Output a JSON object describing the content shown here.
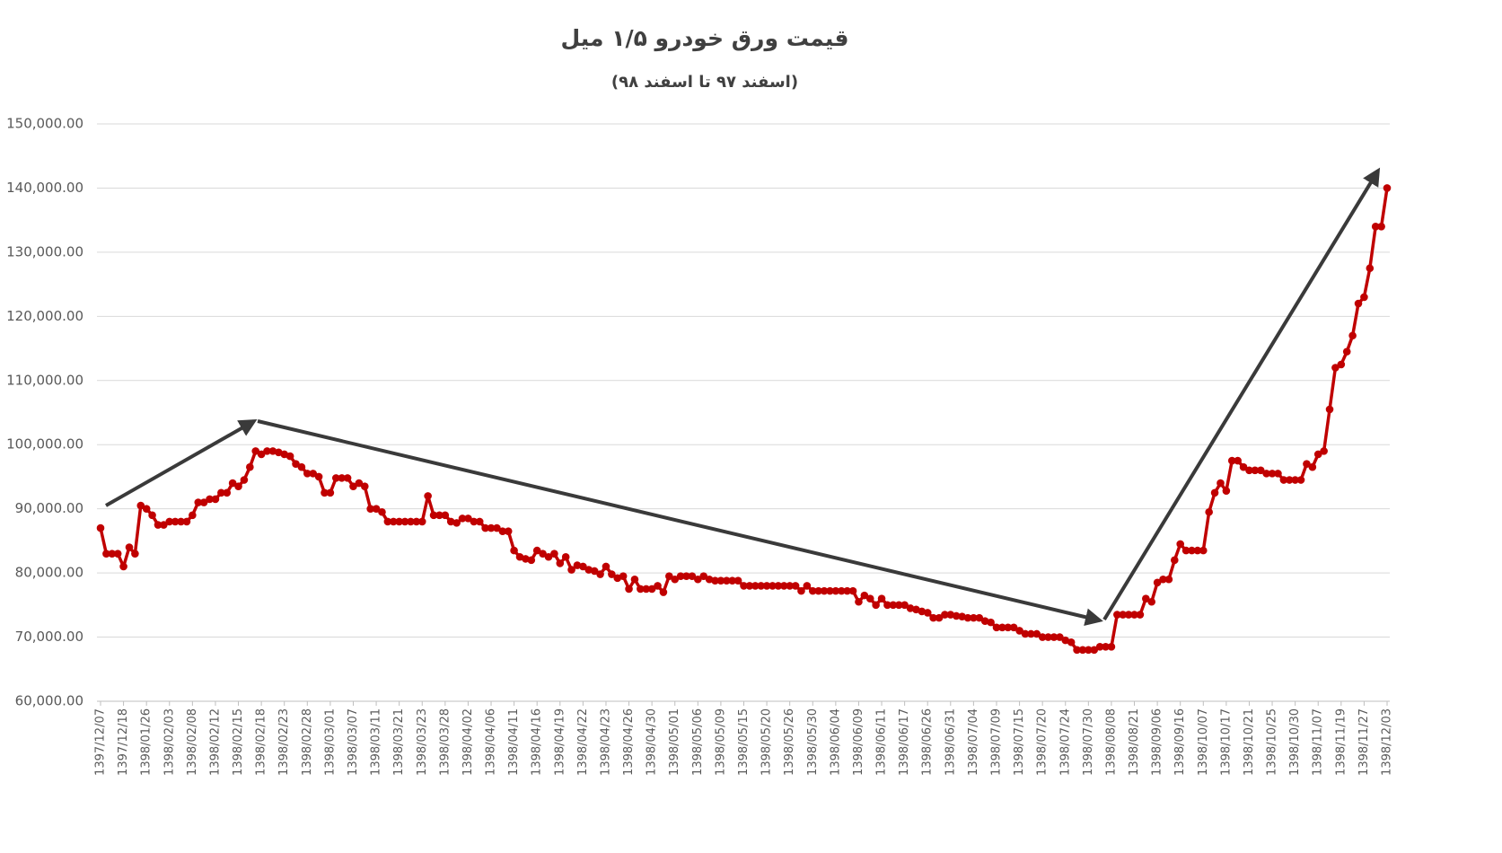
{
  "chart_data": {
    "type": "line",
    "title": "قیمت ورق خودرو ۱/۵ میل",
    "subtitle": "(اسفند ۹۷ تا اسفند ۹۸)",
    "categories": [
      "1397/12/07",
      null,
      null,
      null,
      "1397/12/18",
      null,
      null,
      null,
      "1398/01/26",
      null,
      null,
      null,
      "1398/02/03",
      null,
      null,
      null,
      "1398/02/08",
      null,
      null,
      null,
      "1398/02/12",
      null,
      null,
      null,
      "1398/02/15",
      null,
      null,
      null,
      "1398/02/18",
      null,
      null,
      null,
      "1398/02/23",
      null,
      null,
      null,
      "1398/02/28",
      null,
      null,
      null,
      "1398/03/01",
      null,
      null,
      null,
      "1398/03/07",
      null,
      null,
      null,
      "1398/03/11",
      null,
      null,
      null,
      "1398/03/21",
      null,
      null,
      null,
      "1398/03/23",
      null,
      null,
      null,
      "1398/03/28",
      null,
      null,
      null,
      "1398/04/02",
      null,
      null,
      null,
      "1398/04/06",
      null,
      null,
      null,
      "1398/04/11",
      null,
      null,
      null,
      "1398/04/16",
      null,
      null,
      null,
      "1398/04/19",
      null,
      null,
      null,
      "1398/04/22",
      null,
      null,
      null,
      "1398/04/23",
      null,
      null,
      null,
      "1398/04/26",
      null,
      null,
      null,
      "1398/04/30",
      null,
      null,
      null,
      "1398/05/01",
      null,
      null,
      null,
      "1398/05/06",
      null,
      null,
      null,
      "1398/05/09",
      null,
      null,
      null,
      "1398/05/15",
      null,
      null,
      null,
      "1398/05/20",
      null,
      null,
      null,
      "1398/05/26",
      null,
      null,
      null,
      "1398/05/30",
      null,
      null,
      null,
      "1398/06/04",
      null,
      null,
      null,
      "1398/06/09",
      null,
      null,
      null,
      "1398/06/11",
      null,
      null,
      null,
      "1398/06/17",
      null,
      null,
      null,
      "1398/06/26",
      null,
      null,
      null,
      "1398/06/31",
      null,
      null,
      null,
      "1398/07/04",
      null,
      null,
      null,
      "1398/07/09",
      null,
      null,
      null,
      "1398/07/15",
      null,
      null,
      null,
      "1398/07/20",
      null,
      null,
      null,
      "1398/07/24",
      null,
      null,
      null,
      "1398/07/30",
      null,
      null,
      null,
      "1398/08/08",
      null,
      null,
      null,
      "1398/08/21",
      null,
      null,
      null,
      "1398/09/06",
      null,
      null,
      null,
      "1398/09/16",
      null,
      null,
      null,
      "1398/10/07",
      null,
      null,
      null,
      "1398/10/17",
      null,
      null,
      null,
      "1398/10/21",
      null,
      null,
      null,
      "1398/10/25",
      null,
      null,
      null,
      "1398/10/30",
      null,
      null,
      null,
      "1398/11/07",
      null,
      null,
      null,
      "1398/11/19",
      null,
      null,
      null,
      "1398/11/27",
      null,
      null,
      null,
      "1398/12/03"
    ],
    "values": [
      87000,
      83000,
      83000,
      83000,
      81000,
      84000,
      83000,
      90500,
      90000,
      89000,
      87500,
      87500,
      88000,
      88000,
      88000,
      88000,
      89000,
      91000,
      91000,
      91500,
      91500,
      92500,
      92500,
      94000,
      93500,
      94500,
      96500,
      99000,
      98500,
      99000,
      99000,
      98800,
      98500,
      98200,
      97000,
      96500,
      95500,
      95500,
      95000,
      92500,
      92500,
      94800,
      94800,
      94800,
      93500,
      94000,
      93500,
      90000,
      90000,
      89500,
      88000,
      88000,
      88000,
      88000,
      88000,
      88000,
      88000,
      92000,
      89000,
      89000,
      89000,
      88000,
      87800,
      88500,
      88500,
      88000,
      88000,
      87000,
      87000,
      87000,
      86500,
      86500,
      83500,
      82500,
      82200,
      82000,
      83500,
      83000,
      82500,
      83000,
      81500,
      82500,
      80500,
      81200,
      81000,
      80500,
      80300,
      79800,
      81000,
      79800,
      79200,
      79500,
      77500,
      79000,
      77500,
      77500,
      77500,
      78000,
      77000,
      79500,
      79000,
      79500,
      79500,
      79500,
      79000,
      79500,
      79000,
      78800,
      78800,
      78800,
      78800,
      78800,
      78000,
      78000,
      78000,
      78000,
      78000,
      78000,
      78000,
      78000,
      78000,
      78000,
      77200,
      78000,
      77200,
      77200,
      77200,
      77200,
      77200,
      77200,
      77200,
      77200,
      75500,
      76500,
      76000,
      75000,
      76000,
      75000,
      75000,
      75000,
      75000,
      74500,
      74300,
      74000,
      73800,
      73000,
      73000,
      73500,
      73500,
      73300,
      73200,
      73000,
      73000,
      73000,
      72500,
      72300,
      71500,
      71500,
      71500,
      71500,
      71000,
      70500,
      70500,
      70500,
      70000,
      70000,
      70000,
      70000,
      69500,
      69200,
      68000,
      68000,
      68000,
      68000,
      68500,
      68500,
      68500,
      73500,
      73500,
      73500,
      73500,
      73500,
      76000,
      75500,
      78500,
      79000,
      79000,
      82000,
      84500,
      83500,
      83500,
      83500,
      83500,
      89500,
      92500,
      94000,
      92800,
      97500,
      97500,
      96500,
      96000,
      96000,
      96000,
      95500,
      95500,
      95500,
      94500,
      94500,
      94500,
      94500,
      97000,
      96500,
      98500,
      99000,
      105500,
      112000,
      112500,
      114500,
      117000,
      122000,
      123000,
      127500,
      134000,
      134000,
      140000
    ],
    "color": "#c00000",
    "ylim": [
      60000,
      150000
    ],
    "yticks": [
      {
        "value": 60000,
        "label": "60,000.00"
      },
      {
        "value": 70000,
        "label": "70,000.00"
      },
      {
        "value": 80000,
        "label": "80,000.00"
      },
      {
        "value": 90000,
        "label": "90,000.00"
      },
      {
        "value": 100000,
        "label": "100,000.00"
      },
      {
        "value": 110000,
        "label": "110,000.00"
      },
      {
        "value": 120000,
        "label": "120,000.00"
      },
      {
        "value": 130000,
        "label": "130,000.00"
      },
      {
        "value": 140000,
        "label": "140,000.00"
      },
      {
        "value": 150000,
        "label": "150,000.00"
      }
    ],
    "grid": true
  }
}
